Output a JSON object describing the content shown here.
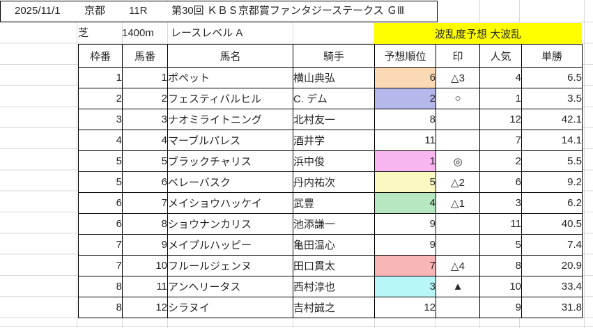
{
  "header": {
    "date": "2025/11/1",
    "venue": "京都",
    "race_number": "11R",
    "race_title": "第30回 ＫＢＳ京都賞ファンタジーステークス ＧⅢ"
  },
  "race_info": {
    "surface": "芝",
    "distance": "1400m",
    "race_level": "レースレベル A",
    "chaos_banner": "波乱度予想 大波乱"
  },
  "colors": {
    "banner_bg": "#ffff00",
    "grid_line": "#d9d9d9",
    "table_border": "#000000"
  },
  "table": {
    "columns": {
      "waku": "枠番",
      "uma": "馬番",
      "name": "馬名",
      "jockey": "騎手",
      "rank": "予想順位",
      "mark": "印",
      "popularity": "人気",
      "odds": "単勝"
    },
    "rows": [
      {
        "waku": "1",
        "uma": "1",
        "name": "ポペット",
        "jockey": "横山典弘",
        "rank": "6",
        "mark": "△3",
        "popularity": "4",
        "odds": "6.5",
        "rank_bg": "#fbd9b5"
      },
      {
        "waku": "2",
        "uma": "2",
        "name": "フェスティバルヒル",
        "jockey": "C. デム",
        "rank": "2",
        "mark": "○",
        "popularity": "1",
        "odds": "3.5",
        "rank_bg": "#b5b8ea"
      },
      {
        "waku": "3",
        "uma": "3",
        "name": "ナオミライトニング",
        "jockey": "北村友一",
        "rank": "8",
        "mark": "",
        "popularity": "12",
        "odds": "42.1",
        "rank_bg": ""
      },
      {
        "waku": "4",
        "uma": "4",
        "name": "マーブルパレス",
        "jockey": "酒井学",
        "rank": "11",
        "mark": "",
        "popularity": "7",
        "odds": "14.1",
        "rank_bg": ""
      },
      {
        "waku": "5",
        "uma": "5",
        "name": "ブラックチャリス",
        "jockey": "浜中俊",
        "rank": "1",
        "mark": "◎",
        "popularity": "2",
        "odds": "5.5",
        "rank_bg": "#f8b6f0"
      },
      {
        "waku": "5",
        "uma": "6",
        "name": "ベレーバスク",
        "jockey": "丹内祐次",
        "rank": "5",
        "mark": "△2",
        "popularity": "6",
        "odds": "9.2",
        "rank_bg": "#fbf9c2"
      },
      {
        "waku": "6",
        "uma": "7",
        "name": "メイショウハッケイ",
        "jockey": "武豊",
        "rank": "4",
        "mark": "△1",
        "popularity": "3",
        "odds": "6.2",
        "rank_bg": "#b7e7c0"
      },
      {
        "waku": "6",
        "uma": "8",
        "name": "ショウナンカリス",
        "jockey": "池添謙一",
        "rank": "9",
        "mark": "",
        "popularity": "11",
        "odds": "40.5",
        "rank_bg": ""
      },
      {
        "waku": "7",
        "uma": "9",
        "name": "メイプルハッピー",
        "jockey": "亀田温心",
        "rank": "9",
        "mark": "",
        "popularity": "5",
        "odds": "7.4",
        "rank_bg": ""
      },
      {
        "waku": "7",
        "uma": "10",
        "name": "フルールジェンヌ",
        "jockey": "田口貫太",
        "rank": "7",
        "mark": "△4",
        "popularity": "8",
        "odds": "20.9",
        "rank_bg": "#f9b6b6"
      },
      {
        "waku": "8",
        "uma": "11",
        "name": "アンヘリータス",
        "jockey": "西村淳也",
        "rank": "3",
        "mark": "▲",
        "popularity": "10",
        "odds": "33.4",
        "rank_bg": "#b9f6f7"
      },
      {
        "waku": "8",
        "uma": "12",
        "name": "シラヌイ",
        "jockey": "吉村誠之",
        "rank": "12",
        "mark": "",
        "popularity": "9",
        "odds": "31.8",
        "rank_bg": ""
      }
    ]
  }
}
